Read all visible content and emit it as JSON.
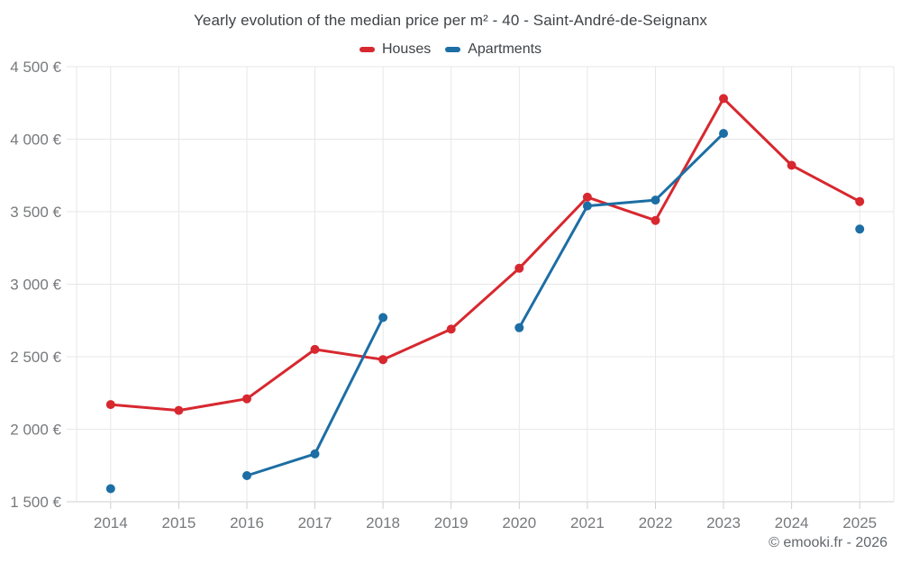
{
  "title": "Yearly evolution of the median price per m² - 40 - Saint-André-de-Seignanx",
  "legend": {
    "items": [
      {
        "label": "Houses",
        "color": "#d7282f"
      },
      {
        "label": "Apartments",
        "color": "#1c6ea4"
      }
    ]
  },
  "footer": {
    "credit": "© emooki.fr - 2026"
  },
  "chart_data": {
    "type": "line",
    "title": "Yearly evolution of the median price per m² - 40 - Saint-André-de-Seignanx",
    "categories": [
      "2014",
      "2015",
      "2016",
      "2017",
      "2018",
      "2019",
      "2020",
      "2021",
      "2022",
      "2023",
      "2024",
      "2025"
    ],
    "series": [
      {
        "name": "Houses",
        "color": "#d7282f",
        "values": [
          2170,
          2130,
          2210,
          2550,
          2480,
          2690,
          3110,
          3600,
          3440,
          4280,
          3820,
          3570
        ]
      },
      {
        "name": "Apartments",
        "color": "#1c6ea4",
        "values": [
          1590,
          null,
          1680,
          1830,
          2770,
          null,
          2700,
          3540,
          3580,
          4040,
          null,
          3380
        ]
      }
    ],
    "ylim": [
      1500,
      4500
    ],
    "yticks": [
      1500,
      2000,
      2500,
      3000,
      3500,
      4000,
      4500
    ],
    "ytick_labels": [
      "1 500 €",
      "2 000 €",
      "2 500 €",
      "3 000 €",
      "3 500 €",
      "4 000 €",
      "4 500 €"
    ],
    "currency": "€",
    "grid": true,
    "legend_position": "top"
  }
}
